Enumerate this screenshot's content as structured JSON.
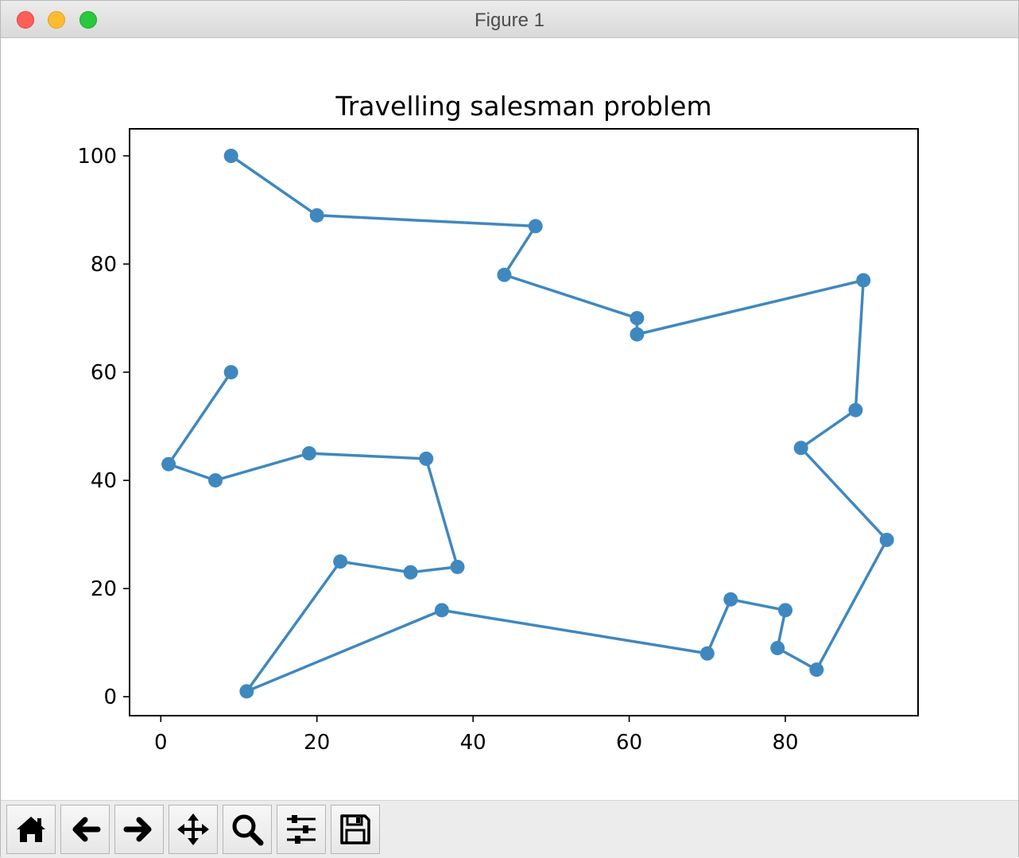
{
  "window": {
    "title": "Figure 1"
  },
  "toolbar": {
    "buttons": [
      {
        "name": "home-button",
        "icon": "home-icon"
      },
      {
        "name": "back-button",
        "icon": "arrow-left-icon"
      },
      {
        "name": "forward-button",
        "icon": "arrow-right-icon"
      },
      {
        "name": "pan-button",
        "icon": "move-icon"
      },
      {
        "name": "zoom-button",
        "icon": "magnifier-icon"
      },
      {
        "name": "configure-subplots-button",
        "icon": "sliders-icon"
      },
      {
        "name": "save-button",
        "icon": "floppy-disk-icon"
      }
    ]
  },
  "chart_data": {
    "type": "line",
    "title": "Travelling salesman problem",
    "xlabel": "",
    "ylabel": "",
    "xlim": [
      -4,
      97
    ],
    "ylim": [
      -3.5,
      105
    ],
    "xticks": [
      0,
      20,
      40,
      60,
      80
    ],
    "yticks": [
      0,
      20,
      40,
      60,
      80,
      100
    ],
    "grid": false,
    "color": "#3f88bf",
    "markers": true,
    "x": [
      9,
      20,
      48,
      44,
      61,
      61,
      90,
      89,
      82,
      93,
      84,
      79,
      80,
      73,
      70,
      36,
      11,
      23,
      32,
      38,
      34,
      19,
      7,
      1,
      9
    ],
    "y": [
      100,
      89,
      87,
      78,
      70,
      67,
      77,
      53,
      46,
      29,
      5,
      9,
      16,
      18,
      8,
      16,
      1,
      25,
      23,
      24,
      44,
      45,
      40,
      43,
      60
    ]
  }
}
